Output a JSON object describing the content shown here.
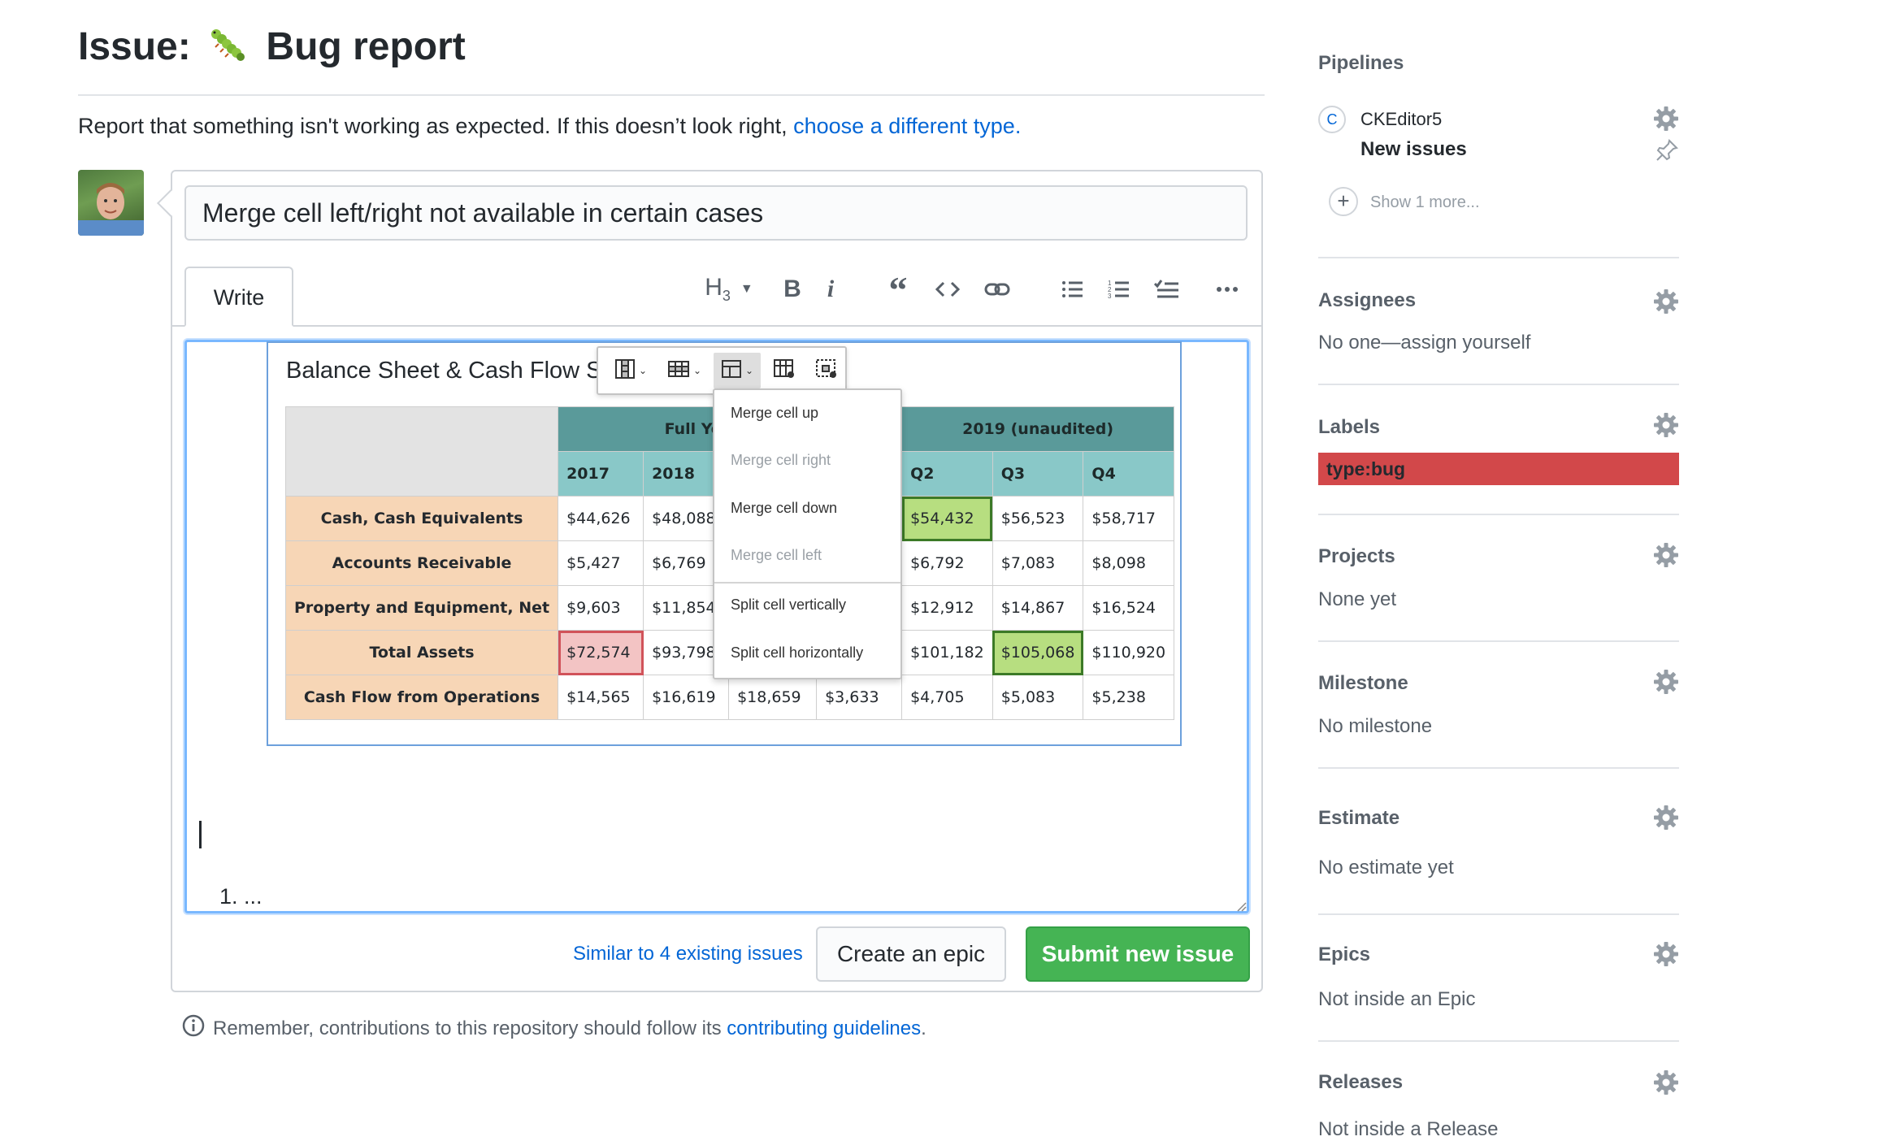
{
  "header": {
    "title_prefix": "Issue:",
    "title_text": "Bug report",
    "intro_text": "Report that something isn't working as expected. If this doesn’t look right, ",
    "intro_link": "choose a different type."
  },
  "form": {
    "title_value": "Merge cell left/right not available in certain cases",
    "tab_write": "Write",
    "toolbar": {
      "heading_label": "H",
      "heading_sub": "3",
      "icons": [
        "heading-icon",
        "bold-icon",
        "italic-icon",
        "quote-icon",
        "code-icon",
        "link-icon",
        "bulleted-list-icon",
        "numbered-list-icon",
        "task-list-icon",
        "more-icon"
      ]
    },
    "editor": {
      "table_caption": "Balance Sheet & Cash Flow Sta",
      "header_groups": [
        "Full Year (unau",
        "2019 (unaudited)"
      ],
      "columns": [
        "2017",
        "2018",
        "",
        "",
        "Q2",
        "Q3",
        "Q4"
      ],
      "rows": [
        {
          "label": "Cash, Cash Equivalents",
          "cells": [
            "$44,626",
            "$48,088",
            "",
            "",
            "$54,432",
            "$56,523",
            "$58,717"
          ]
        },
        {
          "label": "Accounts Receivable",
          "cells": [
            "$5,427",
            "$6,769",
            "",
            "",
            "$6,792",
            "$7,083",
            "$8,098"
          ]
        },
        {
          "label": "Property and Equipment, Net",
          "cells": [
            "$9,603",
            "$11,854",
            "",
            "",
            "$12,912",
            "$14,867",
            "$16,524"
          ]
        },
        {
          "label": "Total Assets",
          "cells": [
            "$72,574",
            "$93,798",
            "",
            "",
            "$101,182",
            "$105,068",
            "$110,920"
          ]
        },
        {
          "label": "Cash Flow from Operations",
          "cells": [
            "$14,565",
            "$16,619",
            "$18,659",
            "$3,633",
            "$4,705",
            "$5,083",
            "$5,238"
          ]
        }
      ],
      "merge_menu": [
        {
          "label": "Merge cell up",
          "enabled": true
        },
        {
          "label": "Merge cell right",
          "enabled": false
        },
        {
          "label": "Merge cell down",
          "enabled": true
        },
        {
          "label": "Merge cell left",
          "enabled": false
        },
        {
          "label": "Split cell vertically",
          "enabled": true
        },
        {
          "label": "Split cell horizontally",
          "enabled": true
        }
      ],
      "list_item": "1. ..."
    },
    "similar_link": "Similar to 4 existing issues",
    "create_epic_label": "Create an epic",
    "submit_label": "Submit new issue",
    "note_text": "Remember, contributions to this repository should follow its ",
    "note_link": "contributing guidelines",
    "note_end": "."
  },
  "sidebar": {
    "pipelines": {
      "heading": "Pipelines",
      "logo_letter": "C",
      "repo": "CKEditor5",
      "stage": "New issues",
      "more": "Show 1 more..."
    },
    "assignees": {
      "heading": "Assignees",
      "value": "No one—assign yourself"
    },
    "labels": {
      "heading": "Labels",
      "value": "type:bug",
      "color": "#d2484a"
    },
    "projects": {
      "heading": "Projects",
      "value": "None yet"
    },
    "milestone": {
      "heading": "Milestone",
      "value": "No milestone"
    },
    "estimate": {
      "heading": "Estimate",
      "value": "No estimate yet"
    },
    "epics": {
      "heading": "Epics",
      "value": "Not inside an Epic"
    },
    "releases": {
      "heading": "Releases",
      "value": "Not inside a Release"
    }
  },
  "colors": {
    "link": "#0366d6",
    "submit": "#45b454",
    "editor_focus": "#79b8ff"
  }
}
